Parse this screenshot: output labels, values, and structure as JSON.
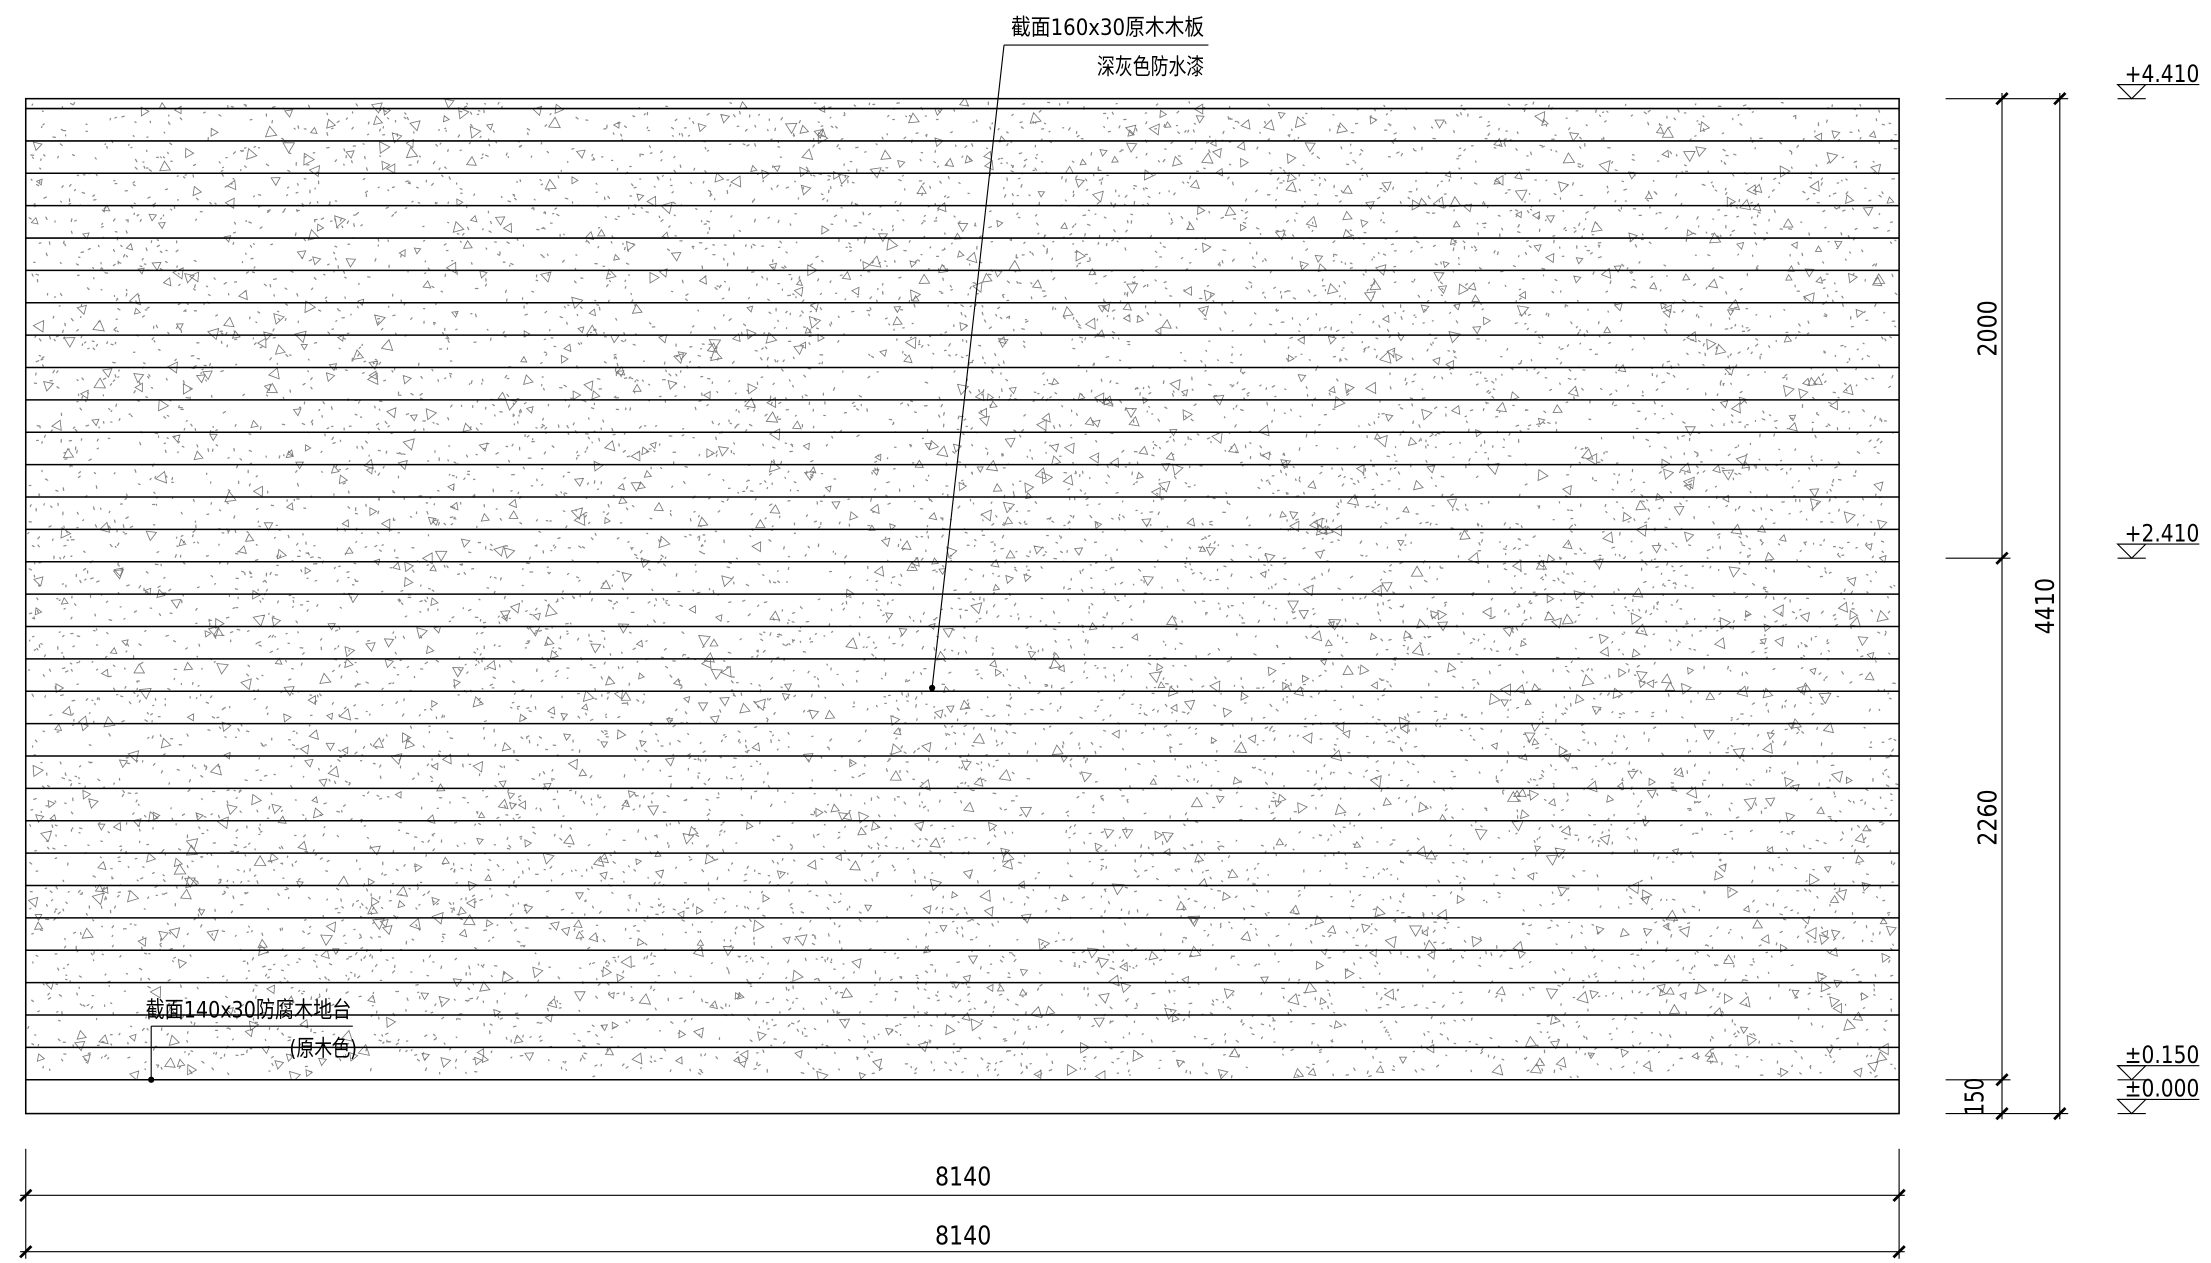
{
  "drawing": {
    "top_note": {
      "line1": "截面160x30原木木板",
      "line2": "深灰色防水漆"
    },
    "bottom_note": {
      "line1": "截面140x30防腐木地台",
      "line2": "(原木色)"
    },
    "horizontal_dimensions": [
      "8140",
      "8140"
    ],
    "vertical_dimensions": {
      "upper": "2000",
      "lower": "2260",
      "base": "150",
      "total": "4410"
    },
    "elevation_marks": [
      "+4.410",
      "+2.410",
      "±0.150",
      "±0.000"
    ]
  },
  "colors": {
    "background": "#ffffff",
    "line": "#000000",
    "texture_speckle": "#8c8c8c",
    "texture_triangle": "#777777"
  }
}
